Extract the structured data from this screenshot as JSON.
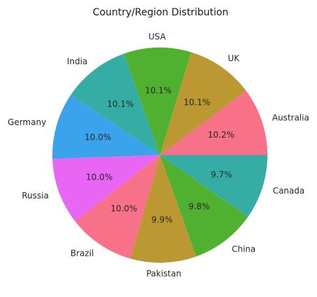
{
  "chart_data": {
    "type": "pie",
    "title": "Country/Region Distribution",
    "start_angle_deg": 0,
    "direction": "counterclockwise",
    "slices": [
      {
        "label": "Australia",
        "value": 10.2,
        "pct_label": "10.2%",
        "color": "#f77189"
      },
      {
        "label": "UK",
        "value": 10.1,
        "pct_label": "10.1%",
        "color": "#bb9832"
      },
      {
        "label": "USA",
        "value": 10.1,
        "pct_label": "10.1%",
        "color": "#50b131"
      },
      {
        "label": "India",
        "value": 10.1,
        "pct_label": "10.1%",
        "color": "#36ada4"
      },
      {
        "label": "Germany",
        "value": 10.0,
        "pct_label": "10.0%",
        "color": "#3ba3ec"
      },
      {
        "label": "Russia",
        "value": 10.0,
        "pct_label": "10.0%",
        "color": "#e866f4"
      },
      {
        "label": "Brazil",
        "value": 10.0,
        "pct_label": "10.0%",
        "color": "#f77189"
      },
      {
        "label": "Pakistan",
        "value": 9.9,
        "pct_label": "9.9%",
        "color": "#bb9832"
      },
      {
        "label": "China",
        "value": 9.8,
        "pct_label": "9.8%",
        "color": "#50b131"
      },
      {
        "label": "Canada",
        "value": 9.7,
        "pct_label": "9.7%",
        "color": "#36ada4"
      }
    ]
  }
}
